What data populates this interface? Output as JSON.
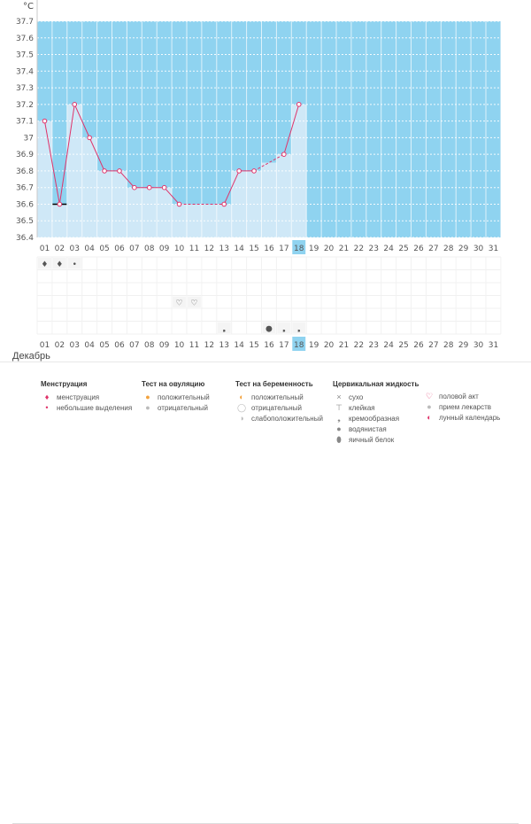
{
  "chart_data": {
    "type": "line",
    "unit": "°C",
    "y_ticks": [
      "37.7",
      "37.6",
      "37.5",
      "37.4",
      "37.3",
      "37.2",
      "37.1",
      "37",
      "36.9",
      "36.8",
      "36.7",
      "36.6",
      "36.5",
      "36.4"
    ],
    "ylim": [
      36.4,
      37.7
    ],
    "coverline": 36.6,
    "days": [
      "01",
      "02",
      "03",
      "04",
      "05",
      "06",
      "07",
      "08",
      "09",
      "10",
      "11",
      "12",
      "13",
      "14",
      "15",
      "16",
      "17",
      "18",
      "19",
      "20",
      "21",
      "22",
      "23",
      "24",
      "25",
      "26",
      "27",
      "28",
      "29",
      "30",
      "31"
    ],
    "today": "18",
    "series": [
      {
        "values": [
          37.1,
          36.6,
          37.2,
          37.0,
          36.8,
          36.8,
          36.7,
          36.7,
          36.7,
          36.6,
          null,
          null,
          36.6,
          36.8,
          36.8,
          null,
          36.9,
          37.2,
          null,
          null,
          null,
          null,
          null,
          null,
          null,
          null,
          null,
          null,
          null,
          null,
          null
        ]
      }
    ],
    "markers": {
      "menstruation": [
        "01",
        "02"
      ],
      "spotting": [
        "03"
      ],
      "intercourse": [
        "10",
        "11"
      ],
      "cervical_creamy": [
        "13",
        "17",
        "18"
      ],
      "cervical_watery": [
        "16"
      ]
    },
    "red_days": [
      "01",
      "02",
      "08",
      "09",
      "15",
      "16",
      "22",
      "23",
      "29",
      "30"
    ],
    "colors": {
      "infertile_bg": "#cfe8f7",
      "fertile_bg": "#8fd3f0",
      "line": "#e0336a",
      "today_bg": "#8fd3f0",
      "red_day": "#e0336a"
    }
  },
  "month_label": "Декабрь",
  "legend": {
    "menstruation": {
      "title": "Менструация",
      "items": [
        "менструация",
        "небольшие выделения"
      ]
    },
    "ovulation": {
      "title": "Тест на овуляцию",
      "items": [
        "положительный",
        "отрицательный"
      ]
    },
    "pregnancy": {
      "title": "Тест на беременность",
      "items": [
        "положительный",
        "отрицательный",
        "слабоположительный"
      ]
    },
    "cervical": {
      "title": "Цервикальная жидкость",
      "items": [
        "сухо",
        "клейкая",
        "кремообразная",
        "водянистая",
        "яичный белок"
      ]
    },
    "other": {
      "items": [
        "половой акт",
        "прием лекарств",
        "лунный календарь"
      ]
    }
  }
}
